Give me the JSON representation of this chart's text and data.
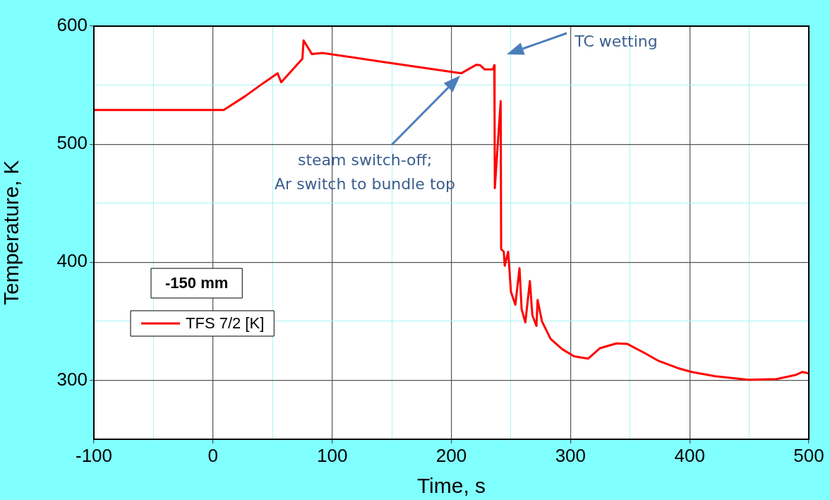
{
  "chart_data": {
    "type": "line",
    "xlabel": "Time, s",
    "ylabel": "Temperature, K",
    "legend_title": "-150 mm",
    "legend": "left",
    "grid": true,
    "marker": "none",
    "line_style": "solid",
    "xlim": [
      -100,
      500
    ],
    "ylim": [
      250,
      600
    ],
    "xticks": [
      -100,
      {
        "value": -50,
        "label": null
      },
      0,
      {
        "value": 50,
        "label": null
      },
      100,
      {
        "value": 150,
        "label": null
      },
      200,
      {
        "value": 250,
        "label": null
      },
      300,
      {
        "value": 350,
        "label": null
      },
      400,
      {
        "value": 450,
        "label": null
      },
      500
    ],
    "yticks": [
      {
        "value": 250,
        "label": null
      },
      300,
      {
        "value": 350,
        "label": null
      },
      400,
      {
        "value": 450,
        "label": null
      },
      500,
      {
        "value": 550,
        "label": null
      },
      600
    ],
    "series": [
      {
        "name": "TFS 7/2 [K]",
        "color": "#ff0000",
        "x": [
          -100,
          0,
          9,
          26.6,
          42,
          54.2,
          57.2,
          75,
          76,
          83,
          91.8,
          145,
          208.2,
          221,
          224,
          228,
          235,
          236,
          236.3,
          236.5,
          241.4,
          241.8,
          244,
          244.8,
          247.7,
          250,
          253.7,
          257.2,
          259,
          262.1,
          265.9,
          268,
          271.4,
          272.4,
          276,
          283.3,
          293.2,
          303,
          309,
          314.8,
          324.8,
          338.6,
          347.5,
          362.3,
          374.1,
          390,
          401.8,
          421.5,
          449.2,
          472.9,
          488.7,
          494.6,
          500
        ],
        "values": [
          529,
          529,
          529,
          540.4,
          551.6,
          560,
          552.4,
          572.3,
          587.9,
          576.3,
          577.3,
          569.3,
          560,
          567.3,
          567,
          563.3,
          563.3,
          567,
          520,
          462.7,
          536.4,
          411,
          409,
          397,
          408.9,
          375,
          364,
          395,
          360,
          349,
          384,
          355,
          346,
          368,
          350,
          335,
          326.2,
          320.3,
          319.3,
          318.3,
          327.2,
          331.2,
          330.8,
          323,
          316.3,
          310.3,
          307,
          303.4,
          300.4,
          301,
          304.4,
          307,
          305.8
        ]
      }
    ],
    "annotations": [
      "TC wetting",
      "steam switch-off;\nAr switch to bundle top"
    ]
  }
}
